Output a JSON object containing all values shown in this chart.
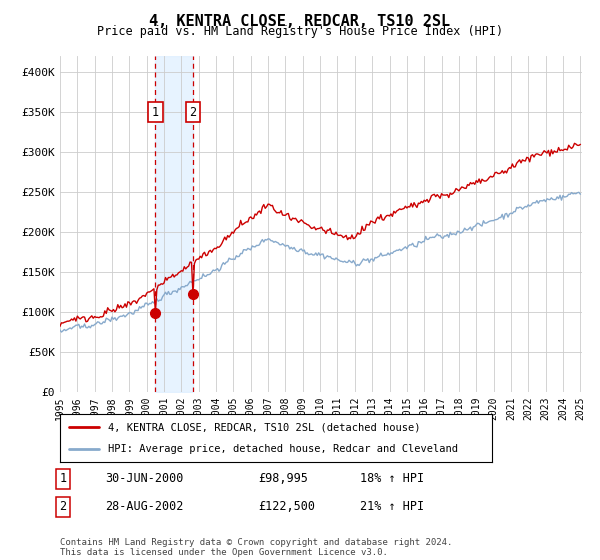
{
  "title": "4, KENTRA CLOSE, REDCAR, TS10 2SL",
  "subtitle": "Price paid vs. HM Land Registry's House Price Index (HPI)",
  "ylim": [
    0,
    420000
  ],
  "yticks": [
    0,
    50000,
    100000,
    150000,
    200000,
    250000,
    300000,
    350000,
    400000
  ],
  "ytick_labels": [
    "£0",
    "£50K",
    "£100K",
    "£150K",
    "£200K",
    "£250K",
    "£300K",
    "£350K",
    "£400K"
  ],
  "sale1_price": 98995,
  "sale1_date_str": "30-JUN-2000",
  "sale1_price_str": "£98,995",
  "sale1_hpi_str": "18% ↑ HPI",
  "sale2_price": 122500,
  "sale2_date_str": "28-AUG-2002",
  "sale2_price_str": "£122,500",
  "sale2_hpi_str": "21% ↑ HPI",
  "line_color_sale": "#cc0000",
  "line_color_hpi": "#88aacc",
  "shade_color": "#ddeeff",
  "grid_color": "#cccccc",
  "legend_label_sale": "4, KENTRA CLOSE, REDCAR, TS10 2SL (detached house)",
  "legend_label_hpi": "HPI: Average price, detached house, Redcar and Cleveland",
  "footer": "Contains HM Land Registry data © Crown copyright and database right 2024.\nThis data is licensed under the Open Government Licence v3.0.",
  "years": [
    1995,
    1996,
    1997,
    1998,
    1999,
    2000,
    2001,
    2002,
    2003,
    2004,
    2005,
    2006,
    2007,
    2008,
    2009,
    2010,
    2011,
    2012,
    2013,
    2014,
    2015,
    2016,
    2017,
    2018,
    2019,
    2020,
    2021,
    2022,
    2023,
    2024,
    2025
  ]
}
